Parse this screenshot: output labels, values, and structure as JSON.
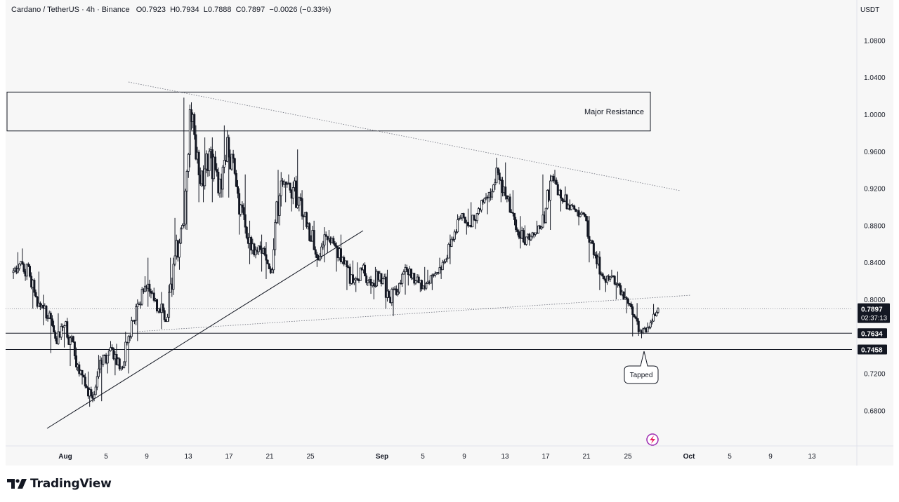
{
  "header": {
    "symbol": "Cardano / TetherUS · 4h · Binance",
    "open": "O0.7923",
    "high": "H0.7934",
    "low": "L0.7888",
    "close": "C0.7897",
    "change": "−0.0026 (−0.33%)"
  },
  "currency": "USDT",
  "branding": {
    "name": "TradingView"
  },
  "chart_data": {
    "type": "candlestick",
    "interval": "4h",
    "x_axis": {
      "ticks": [
        "Aug",
        "5",
        "9",
        "13",
        "17",
        "21",
        "25",
        "Sep",
        "5",
        "9",
        "13",
        "17",
        "21",
        "25",
        "Oct",
        "5",
        "9",
        "13"
      ]
    },
    "y_axis": {
      "ticks": [
        "1.0800",
        "1.0400",
        "1.0000",
        "0.9600",
        "0.9200",
        "0.8800",
        "0.8400",
        "0.8000",
        "0.7200",
        "0.6800"
      ],
      "range": [
        0.64,
        1.11
      ],
      "position": "right"
    },
    "price_tags": [
      {
        "label": "0.7897",
        "sublabel": "02:37:13",
        "value": 0.7897,
        "style": "current"
      },
      {
        "label": "0.7634",
        "value": 0.7634,
        "style": "level"
      },
      {
        "label": "0.7458",
        "value": 0.7458,
        "style": "level"
      }
    ],
    "horizontal_levels": [
      0.7634,
      0.7458
    ],
    "annotations": {
      "resistance_label": "Major Resistance",
      "resistance_zone": [
        0.982,
        1.024
      ],
      "callout_label": "Tapped"
    },
    "ohlc_path": [
      [
        0.829,
        0.851,
        0.822,
        0.841
      ],
      [
        0.841,
        0.855,
        0.82,
        0.825
      ],
      [
        0.825,
        0.83,
        0.79,
        0.796
      ],
      [
        0.796,
        0.805,
        0.772,
        0.78
      ],
      [
        0.78,
        0.788,
        0.742,
        0.752
      ],
      [
        0.752,
        0.785,
        0.748,
        0.776
      ],
      [
        0.776,
        0.78,
        0.728,
        0.739
      ],
      [
        0.739,
        0.748,
        0.708,
        0.716
      ],
      [
        0.716,
        0.722,
        0.684,
        0.693
      ],
      [
        0.693,
        0.74,
        0.69,
        0.73
      ],
      [
        0.73,
        0.755,
        0.72,
        0.748
      ],
      [
        0.748,
        0.752,
        0.718,
        0.725
      ],
      [
        0.725,
        0.765,
        0.72,
        0.76
      ],
      [
        0.76,
        0.8,
        0.755,
        0.795
      ],
      [
        0.795,
        0.825,
        0.79,
        0.812
      ],
      [
        0.812,
        0.845,
        0.792,
        0.8
      ],
      [
        0.8,
        0.808,
        0.768,
        0.778
      ],
      [
        0.778,
        0.845,
        0.776,
        0.838
      ],
      [
        0.838,
        0.888,
        0.832,
        0.88
      ],
      [
        0.88,
        1.018,
        0.875,
        0.992
      ],
      [
        0.992,
        1.002,
        0.905,
        0.925
      ],
      [
        0.925,
        0.975,
        0.905,
        0.96
      ],
      [
        0.96,
        0.975,
        0.905,
        0.915
      ],
      [
        0.915,
        0.988,
        0.91,
        0.975
      ],
      [
        0.975,
        0.978,
        0.91,
        0.922
      ],
      [
        0.922,
        0.935,
        0.87,
        0.878
      ],
      [
        0.878,
        0.885,
        0.838,
        0.848
      ],
      [
        0.848,
        0.87,
        0.83,
        0.855
      ],
      [
        0.855,
        0.862,
        0.822,
        0.832
      ],
      [
        0.832,
        0.94,
        0.828,
        0.928
      ],
      [
        0.928,
        0.935,
        0.905,
        0.918
      ],
      [
        0.918,
        0.962,
        0.895,
        0.91
      ],
      [
        0.91,
        0.918,
        0.875,
        0.882
      ],
      [
        0.882,
        0.885,
        0.835,
        0.845
      ],
      [
        0.845,
        0.878,
        0.84,
        0.868
      ],
      [
        0.868,
        0.875,
        0.85,
        0.858
      ],
      [
        0.858,
        0.87,
        0.83,
        0.838
      ],
      [
        0.838,
        0.842,
        0.81,
        0.818
      ],
      [
        0.818,
        0.84,
        0.808,
        0.832
      ],
      [
        0.832,
        0.84,
        0.806,
        0.815
      ],
      [
        0.815,
        0.835,
        0.8,
        0.828
      ],
      [
        0.828,
        0.832,
        0.79,
        0.802
      ],
      [
        0.802,
        0.815,
        0.782,
        0.808
      ],
      [
        0.808,
        0.838,
        0.805,
        0.832
      ],
      [
        0.832,
        0.836,
        0.815,
        0.82
      ],
      [
        0.82,
        0.835,
        0.808,
        0.812
      ],
      [
        0.812,
        0.832,
        0.81,
        0.826
      ],
      [
        0.826,
        0.845,
        0.822,
        0.84
      ],
      [
        0.84,
        0.87,
        0.838,
        0.865
      ],
      [
        0.865,
        0.892,
        0.862,
        0.888
      ],
      [
        0.888,
        0.898,
        0.87,
        0.88
      ],
      [
        0.88,
        0.905,
        0.876,
        0.898
      ],
      [
        0.898,
        0.915,
        0.892,
        0.91
      ],
      [
        0.91,
        0.953,
        0.905,
        0.942
      ],
      [
        0.942,
        0.948,
        0.905,
        0.912
      ],
      [
        0.912,
        0.918,
        0.88,
        0.886
      ],
      [
        0.886,
        0.89,
        0.855,
        0.862
      ],
      [
        0.862,
        0.88,
        0.858,
        0.872
      ],
      [
        0.872,
        0.885,
        0.866,
        0.878
      ],
      [
        0.878,
        0.935,
        0.875,
        0.928
      ],
      [
        0.928,
        0.94,
        0.912,
        0.918
      ],
      [
        0.918,
        0.922,
        0.895,
        0.902
      ],
      [
        0.902,
        0.908,
        0.89,
        0.896
      ],
      [
        0.896,
        0.9,
        0.88,
        0.885
      ],
      [
        0.885,
        0.89,
        0.84,
        0.848
      ],
      [
        0.848,
        0.852,
        0.81,
        0.822
      ],
      [
        0.822,
        0.832,
        0.808,
        0.825
      ],
      [
        0.825,
        0.83,
        0.8,
        0.808
      ],
      [
        0.808,
        0.812,
        0.785,
        0.792
      ],
      [
        0.792,
        0.796,
        0.76,
        0.766
      ],
      [
        0.766,
        0.775,
        0.758,
        0.77
      ],
      [
        0.77,
        0.795,
        0.768,
        0.79
      ]
    ]
  }
}
